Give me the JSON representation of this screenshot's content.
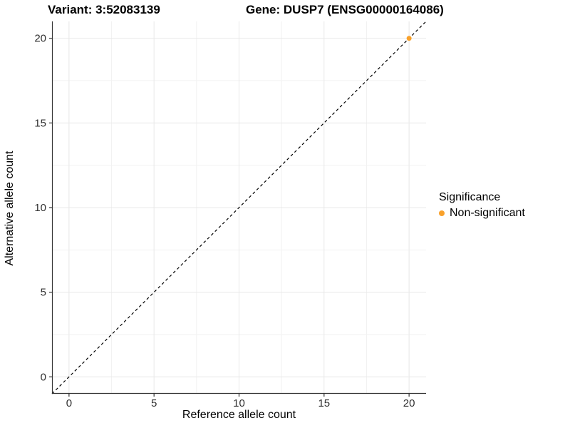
{
  "titles": {
    "variant": "Variant: 3:52083139",
    "gene": "Gene: DUSP7 (ENSG00000164086)"
  },
  "legend": {
    "title": "Significance",
    "items": [
      {
        "label": "Non-significant",
        "marker": "dot-icon",
        "color": "#F9A12B"
      }
    ]
  },
  "colors": {
    "background": "#FFFFFF",
    "point": "#F9A12B",
    "axis_line": "#333333",
    "tick_label": "#303030",
    "grid_major": "#E8E8E8",
    "grid_minor": "#F2F2F2",
    "reference_line": "#000000"
  },
  "chart_data": {
    "type": "scatter",
    "title": "Variant: 3:52083139 | Gene: DUSP7 (ENSG00000164086)",
    "xlabel": "Reference allele count",
    "ylabel": "Alternative allele count",
    "xlim": [
      -1,
      21
    ],
    "ylim": [
      -1,
      21
    ],
    "x_ticks": [
      0,
      5,
      10,
      15,
      20
    ],
    "y_ticks": [
      0,
      5,
      10,
      15,
      20
    ],
    "x_minor_ticks": [
      2.5,
      7.5,
      12.5,
      17.5
    ],
    "y_minor_ticks": [
      2.5,
      7.5,
      12.5,
      17.5
    ],
    "grid": true,
    "legend_position": "right",
    "series": [
      {
        "name": "Non-significant",
        "color": "#F9A12B",
        "points": [
          [
            20,
            20
          ]
        ]
      }
    ],
    "reference_line": {
      "type": "identity y=x",
      "from": [
        -1,
        -1
      ],
      "to": [
        21,
        21
      ],
      "style": "dashed",
      "color": "#000000"
    }
  }
}
